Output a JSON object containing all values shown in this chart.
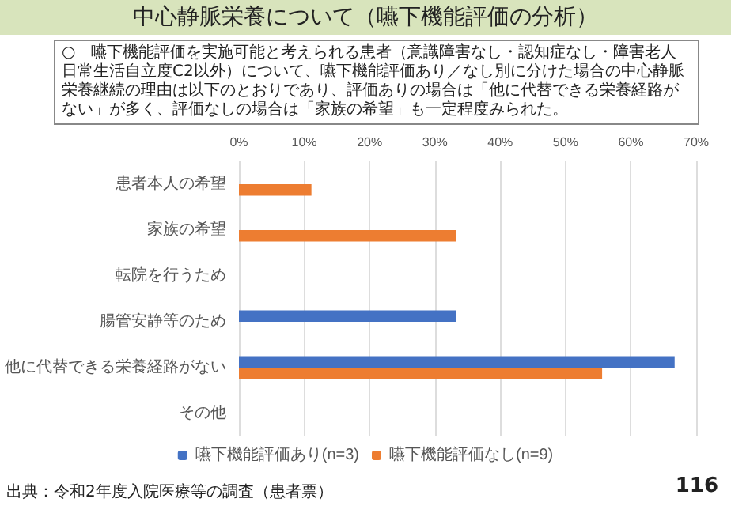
{
  "chart_data": {
    "type": "bar",
    "orientation": "horizontal",
    "title": "中心静脈栄養について（嚥下機能評価の分析）",
    "subtitle": "○　嚥下機能評価を実施可能と考えられる患者（意識障害なし・認知症なし・障害老人日常生活自立度C2以外）について、嚥下機能評価あり／なし別に分けた場合の中心静脈栄養継続の理由は以下のとおりであり、評価ありの場合は「他に代替できる栄養経路がない」が多く、評価なしの場合は「家族の希望」も一定程度みられた。",
    "categories": [
      "患者本人の希望",
      "家族の希望",
      "転院を行うため",
      "腸管安静等のため",
      "他に代替できる栄養経路がない",
      "その他"
    ],
    "series": [
      {
        "name": "嚥下機能評価あり(n=3)",
        "color": "#4472c4",
        "values": [
          0,
          0,
          0,
          33.3,
          66.7,
          0
        ]
      },
      {
        "name": "嚥下機能評価なし(n=9)",
        "color": "#ed7d31",
        "values": [
          11.1,
          33.3,
          0,
          0,
          55.6,
          0
        ]
      }
    ],
    "xlim": [
      0,
      70
    ],
    "xticks": [
      {
        "value": 0,
        "label": "0%"
      },
      {
        "value": 10,
        "label": "10%"
      },
      {
        "value": 20,
        "label": "20%"
      },
      {
        "value": 30,
        "label": "30%"
      },
      {
        "value": 40,
        "label": "40%"
      },
      {
        "value": 50,
        "label": "50%"
      },
      {
        "value": 60,
        "label": "60%"
      },
      {
        "value": 70,
        "label": "70%"
      }
    ],
    "grid": "x",
    "legend": "bottom",
    "annotations": [
      "出典：令和2年度入院医療等の調査（患者票）",
      "116"
    ]
  }
}
